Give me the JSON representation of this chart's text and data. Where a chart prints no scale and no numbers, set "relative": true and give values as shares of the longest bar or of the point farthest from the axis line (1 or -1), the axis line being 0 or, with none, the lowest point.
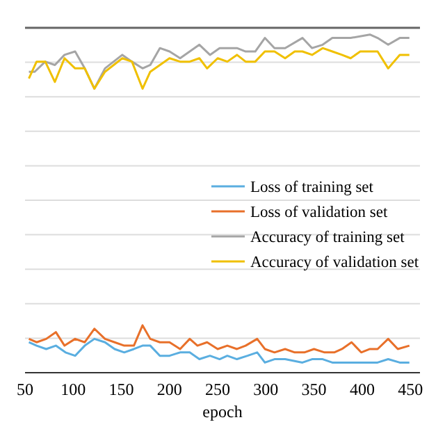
{
  "chart_data": {
    "type": "line",
    "xlabel": "epoch",
    "relative": true,
    "grid": true,
    "legend": "right",
    "xlim": [
      50,
      460
    ],
    "xticks": [
      50,
      100,
      150,
      200,
      250,
      300,
      350,
      400,
      450
    ],
    "series": [
      {
        "name": "Loss of training set",
        "color": "#5aaee0",
        "x": [
          54,
          62,
          72,
          82,
          92,
          102,
          112,
          122,
          133,
          143,
          153,
          163,
          172,
          180,
          190,
          200,
          211,
          221,
          231,
          242,
          252,
          260,
          270,
          281,
          291,
          299,
          309,
          320,
          338,
          348,
          359,
          369,
          379,
          408,
          416,
          427,
          439,
          449
        ],
        "values": [
          0.09,
          0.08,
          0.07,
          0.08,
          0.06,
          0.05,
          0.08,
          0.1,
          0.09,
          0.07,
          0.06,
          0.07,
          0.08,
          0.08,
          0.05,
          0.05,
          0.06,
          0.06,
          0.04,
          0.05,
          0.04,
          0.05,
          0.04,
          0.05,
          0.06,
          0.03,
          0.04,
          0.04,
          0.03,
          0.04,
          0.04,
          0.03,
          0.03,
          0.03,
          0.03,
          0.04,
          0.03,
          0.03
        ]
      },
      {
        "name": "Loss of validation set",
        "color": "#e8702a",
        "x": [
          54,
          62,
          72,
          82,
          91,
          102,
          112,
          122,
          133,
          143,
          153,
          163,
          172,
          180,
          190,
          200,
          211,
          221,
          229,
          239,
          250,
          260,
          270,
          279,
          291,
          299,
          309,
          320,
          330,
          340,
          350,
          361,
          371,
          379,
          389,
          399,
          408,
          416,
          427,
          437,
          449
        ],
        "values": [
          0.1,
          0.09,
          0.1,
          0.12,
          0.08,
          0.1,
          0.09,
          0.13,
          0.1,
          0.09,
          0.08,
          0.08,
          0.14,
          0.1,
          0.09,
          0.09,
          0.07,
          0.1,
          0.08,
          0.09,
          0.07,
          0.08,
          0.07,
          0.08,
          0.1,
          0.07,
          0.06,
          0.07,
          0.06,
          0.06,
          0.07,
          0.06,
          0.06,
          0.07,
          0.09,
          0.06,
          0.07,
          0.07,
          0.1,
          0.07,
          0.08
        ]
      },
      {
        "name": "Accuracy of training set",
        "color": "#a5a5a5",
        "x": [
          54,
          60,
          71,
          81,
          91,
          102,
          112,
          122,
          133,
          151,
          161,
          172,
          180,
          190,
          200,
          211,
          231,
          242,
          252,
          262,
          270,
          279,
          289,
          299,
          309,
          320,
          338,
          348,
          359,
          369,
          379,
          388,
          408,
          416,
          427,
          439,
          449
        ],
        "values": [
          0.89,
          0.89,
          0.92,
          0.91,
          0.94,
          0.95,
          0.9,
          0.84,
          0.9,
          0.94,
          0.92,
          0.9,
          0.91,
          0.96,
          0.95,
          0.93,
          0.97,
          0.94,
          0.96,
          0.96,
          0.96,
          0.95,
          0.95,
          0.99,
          0.96,
          0.96,
          0.99,
          0.96,
          0.97,
          0.99,
          0.99,
          0.99,
          1,
          0.99,
          0.97,
          0.99,
          0.99
        ]
      },
      {
        "name": "Accuracy of validation set",
        "color": "#f0c000",
        "x": [
          54,
          62,
          71,
          81,
          91,
          102,
          112,
          122,
          133,
          151,
          161,
          172,
          180,
          190,
          200,
          211,
          221,
          231,
          239,
          250,
          260,
          270,
          279,
          289,
          299,
          309,
          320,
          330,
          338,
          348,
          359,
          369,
          379,
          388,
          398,
          408,
          416,
          427,
          439,
          449
        ],
        "values": [
          0.87,
          0.92,
          0.92,
          0.86,
          0.93,
          0.9,
          0.9,
          0.84,
          0.89,
          0.93,
          0.92,
          0.84,
          0.89,
          0.91,
          0.93,
          0.92,
          0.92,
          0.93,
          0.9,
          0.93,
          0.92,
          0.94,
          0.92,
          0.92,
          0.95,
          0.95,
          0.93,
          0.95,
          0.95,
          0.94,
          0.96,
          0.95,
          0.94,
          0.93,
          0.95,
          0.95,
          0.95,
          0.9,
          0.94,
          0.94
        ]
      }
    ]
  }
}
